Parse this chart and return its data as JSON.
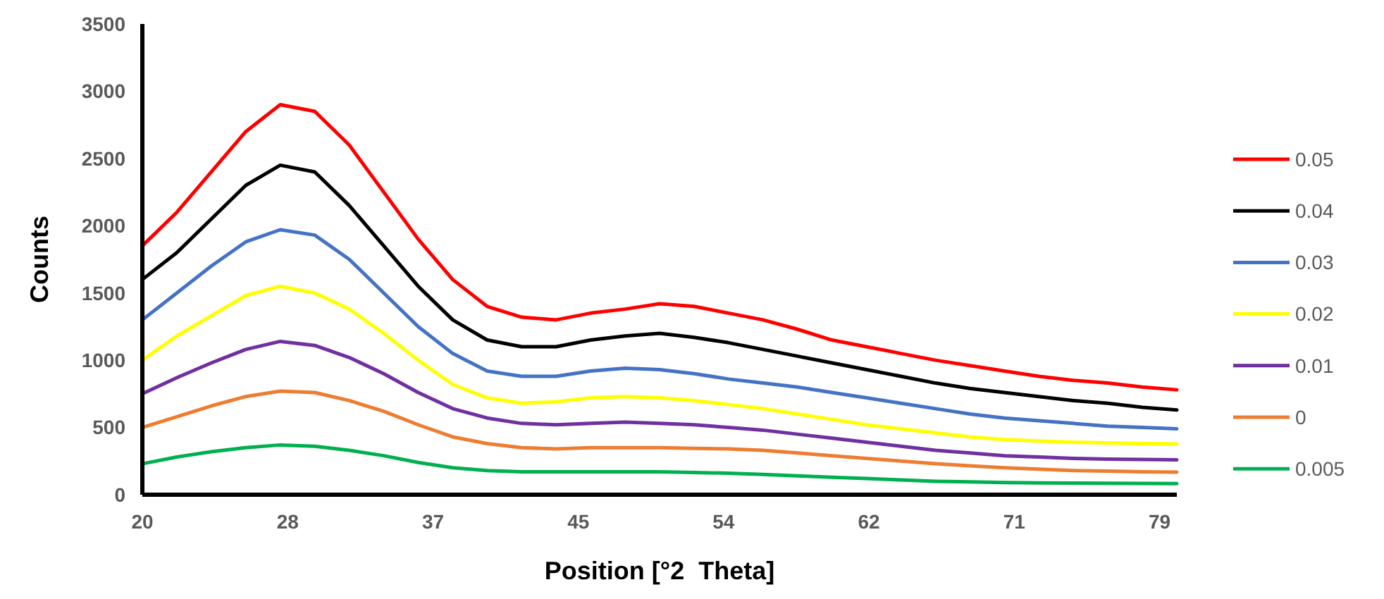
{
  "chart_data": {
    "type": "line",
    "xlabel": "Position [°2  Theta]",
    "ylabel": "Counts",
    "x": [
      20,
      22,
      24,
      26,
      28,
      30,
      32,
      34,
      36,
      38,
      40,
      42,
      44,
      46,
      48,
      50,
      52,
      54,
      56,
      58,
      60,
      62,
      64,
      66,
      68,
      70,
      72,
      74,
      76,
      78,
      80
    ],
    "xlim": [
      20,
      80
    ],
    "xticks": [
      20,
      {
        "value": 28.43,
        "label": "28"
      },
      {
        "value": 36.86,
        "label": "37"
      },
      {
        "value": 45.29,
        "label": "45"
      },
      {
        "value": 53.71,
        "label": "54"
      },
      {
        "value": 62.14,
        "label": "62"
      },
      {
        "value": 70.57,
        "label": "71"
      },
      {
        "value": 79,
        "label": "79"
      }
    ],
    "ylim": [
      0,
      3500
    ],
    "yticks": [
      0,
      500,
      1000,
      1500,
      2000,
      2500,
      3000,
      3500
    ],
    "grid": false,
    "legend": "right",
    "marker": "none",
    "line_style": "solid",
    "series": [
      {
        "name": "0.05",
        "color": "#ff0000",
        "values": [
          1850,
          2100,
          2400,
          2700,
          2900,
          2850,
          2600,
          2250,
          1900,
          1600,
          1400,
          1320,
          1300,
          1350,
          1380,
          1420,
          1400,
          1350,
          1300,
          1230,
          1150,
          1100,
          1050,
          1000,
          960,
          920,
          880,
          850,
          830,
          800,
          780
        ]
      },
      {
        "name": "0.04",
        "color": "#000000",
        "values": [
          1600,
          1800,
          2050,
          2300,
          2450,
          2400,
          2150,
          1850,
          1550,
          1300,
          1150,
          1100,
          1100,
          1150,
          1180,
          1200,
          1170,
          1130,
          1080,
          1030,
          980,
          930,
          880,
          830,
          790,
          760,
          730,
          700,
          680,
          650,
          630
        ]
      },
      {
        "name": "0.03",
        "color": "#4472c4",
        "values": [
          1300,
          1500,
          1700,
          1880,
          1970,
          1930,
          1750,
          1500,
          1250,
          1050,
          920,
          880,
          880,
          920,
          940,
          930,
          900,
          860,
          830,
          800,
          760,
          720,
          680,
          640,
          600,
          570,
          550,
          530,
          510,
          500,
          490
        ]
      },
      {
        "name": "0.02",
        "color": "#ffff00",
        "values": [
          1000,
          1180,
          1330,
          1480,
          1550,
          1500,
          1380,
          1200,
          1000,
          820,
          720,
          680,
          690,
          720,
          730,
          720,
          700,
          670,
          640,
          600,
          560,
          520,
          490,
          460,
          430,
          410,
          400,
          390,
          385,
          380,
          377
        ]
      },
      {
        "name": "0.01",
        "color": "#7030a0",
        "values": [
          750,
          870,
          980,
          1080,
          1140,
          1110,
          1020,
          900,
          760,
          640,
          570,
          530,
          520,
          530,
          540,
          530,
          520,
          500,
          480,
          450,
          420,
          390,
          360,
          330,
          310,
          290,
          280,
          270,
          265,
          262,
          260
        ]
      },
      {
        "name": "0",
        "color": "#ed7d31",
        "values": [
          500,
          580,
          660,
          730,
          770,
          760,
          700,
          620,
          520,
          430,
          380,
          350,
          340,
          350,
          350,
          350,
          345,
          340,
          330,
          310,
          290,
          270,
          250,
          230,
          215,
          200,
          190,
          180,
          175,
          170,
          168
        ]
      },
      {
        "name": "0.005",
        "color": "#00b050",
        "values": [
          230,
          280,
          320,
          350,
          370,
          360,
          330,
          290,
          240,
          200,
          180,
          170,
          170,
          170,
          170,
          170,
          165,
          160,
          150,
          140,
          130,
          120,
          110,
          100,
          95,
          90,
          88,
          86,
          85,
          84,
          83
        ]
      }
    ]
  }
}
